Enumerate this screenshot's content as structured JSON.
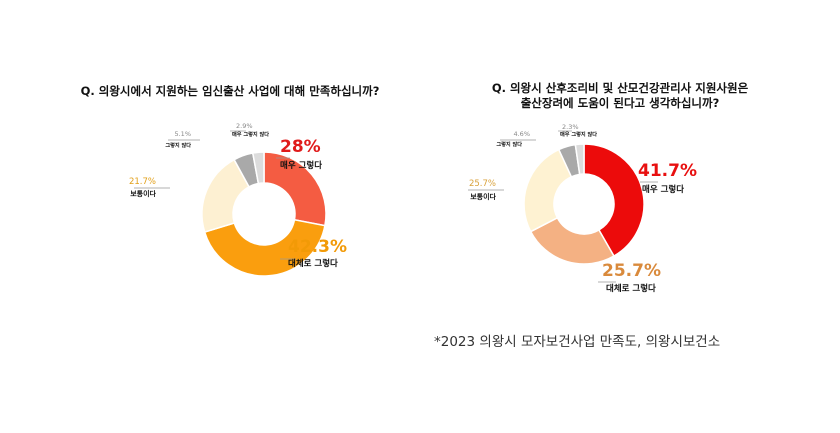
{
  "chart_data": [
    {
      "type": "pie",
      "title": "Q. 의왕시에서 지원하는 임신출산 사업에 대해 만족하십니까?",
      "slices": [
        {
          "label": "매우 그렇다",
          "value": 28.0,
          "value_label": "28%",
          "color": "#f45c42"
        },
        {
          "label": "대체로 그렇다",
          "value": 42.3,
          "value_label": "42.3%",
          "color": "#fa9e0e"
        },
        {
          "label": "보통이다",
          "value": 21.7,
          "value_label": "21.7%",
          "color": "#fdf0d2"
        },
        {
          "label": "그렇지 않다",
          "value": 5.1,
          "value_label": "5.1%",
          "color": "#a9a9a9"
        },
        {
          "label": "매우 그렇지 않다",
          "value": 2.9,
          "value_label": "2.9%",
          "color": "#dcdcdc"
        }
      ]
    },
    {
      "type": "pie",
      "title": "Q. 의왕시 산후조리비 및 산모건강관리사 지원사원은\n출산장려에 도움이 된다고 생각하십니까?",
      "slices": [
        {
          "label": "매우 그렇다",
          "value": 41.7,
          "value_label": "41.7%",
          "color": "#ec0b0b"
        },
        {
          "label": "대체로 그렇다",
          "value": 25.7,
          "value_label": "25.7%",
          "color": "#f4b183"
        },
        {
          "label": "보통이다",
          "value": 25.7,
          "value_label": "25.7%",
          "color": "#fef2d2"
        },
        {
          "label": "그렇지 않다",
          "value": 4.6,
          "value_label": "4.6%",
          "color": "#a9a9a9"
        },
        {
          "label": "매우 그렇지 않다",
          "value": 2.3,
          "value_label": "2.3%",
          "color": "#dcdcdc"
        }
      ]
    }
  ],
  "footnote": "*2023 의왕시 모자보건사업 만족도, 의왕시보건소"
}
